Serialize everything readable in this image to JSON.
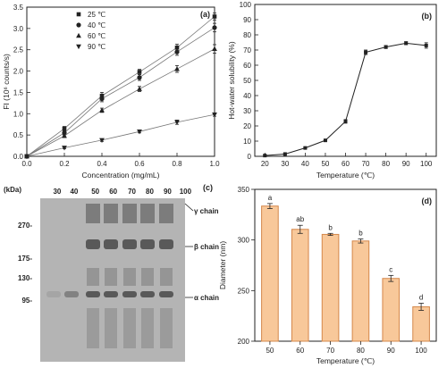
{
  "chart_data": [
    {
      "panel": "(a)",
      "type": "line",
      "xlabel": "Concentration (mg/mL)",
      "ylabel": "FI (10⁶ counts/s)",
      "xlim": [
        0.0,
        1.0
      ],
      "ylim": [
        0.0,
        3.5
      ],
      "xticks": [
        "0.0",
        "0.2",
        "0.4",
        "0.6",
        "0.8",
        "1.0"
      ],
      "yticks": [
        "0.0",
        "0.5",
        "1.0",
        "1.5",
        "2.0",
        "2.5",
        "3.0",
        "3.5"
      ],
      "legend_position": "top-left",
      "x": [
        0.0,
        0.2,
        0.4,
        0.6,
        0.8,
        1.0
      ],
      "series": [
        {
          "name": "25 ℃",
          "marker": "square",
          "values": [
            0.0,
            0.65,
            1.42,
            1.98,
            2.55,
            3.28
          ],
          "errors": [
            0,
            0.05,
            0.08,
            0.06,
            0.08,
            0.08
          ]
        },
        {
          "name": "40 ℃",
          "marker": "circle",
          "values": [
            0.0,
            0.55,
            1.35,
            1.85,
            2.45,
            3.02
          ],
          "errors": [
            0,
            0.05,
            0.07,
            0.07,
            0.08,
            0.1
          ]
        },
        {
          "name": "60 ℃",
          "marker": "triangle-up",
          "values": [
            0.0,
            0.48,
            1.08,
            1.58,
            2.05,
            2.52
          ],
          "errors": [
            0,
            0.04,
            0.05,
            0.06,
            0.08,
            0.1
          ]
        },
        {
          "name": "90 ℃",
          "marker": "triangle-down",
          "values": [
            0.0,
            0.2,
            0.38,
            0.58,
            0.8,
            0.98
          ],
          "errors": [
            0,
            0.02,
            0.03,
            0.03,
            0.05,
            0.04
          ]
        }
      ]
    },
    {
      "panel": "(b)",
      "type": "line",
      "xlabel": "Temperature (℃)",
      "ylabel": "Hot-water solubility (%)",
      "xlim": [
        15,
        105
      ],
      "ylim": [
        0,
        100
      ],
      "xticks": [
        "20",
        "30",
        "40",
        "50",
        "60",
        "70",
        "80",
        "90",
        "100"
      ],
      "yticks": [
        "0",
        "10",
        "20",
        "30",
        "40",
        "50",
        "60",
        "70",
        "80",
        "90",
        "100"
      ],
      "x": [
        20,
        30,
        40,
        50,
        60,
        70,
        80,
        90,
        100
      ],
      "values": [
        0.5,
        1.5,
        5.5,
        10.5,
        23.0,
        68.5,
        72.0,
        74.5,
        73.0
      ],
      "errors": [
        0.3,
        0.3,
        0.5,
        0.5,
        1.2,
        1.5,
        1.0,
        1.0,
        1.8
      ]
    },
    {
      "panel": "(c)",
      "type": "gel",
      "axis_title": "(kDa)",
      "lane_labels": [
        "30",
        "40",
        "50",
        "60",
        "70",
        "80",
        "90",
        "100"
      ],
      "markers": [
        "270-",
        "175-",
        "130-",
        "95-"
      ],
      "band_labels": [
        "γ chain",
        "β chain",
        "α chain"
      ]
    },
    {
      "panel": "(d)",
      "type": "bar",
      "xlabel": "Temperature (℃)",
      "ylabel": "Diameter (nm)",
      "ylim": [
        200,
        350
      ],
      "yticks": [
        "200",
        "250",
        "300",
        "350"
      ],
      "categories": [
        "50",
        "60",
        "70",
        "80",
        "90",
        "100"
      ],
      "values": [
        333.5,
        310.5,
        305.5,
        299.0,
        262.0,
        234.0
      ],
      "errors": [
        2.5,
        4.0,
        1.0,
        2.0,
        3.0,
        3.5
      ],
      "letters": [
        "a",
        "ab",
        "b",
        "b",
        "c",
        "d"
      ]
    }
  ],
  "colors": {
    "axis": "#222222",
    "bar_fill": "#f8c89a",
    "bar_stroke": "#d4874a",
    "gel_bg": "#b4b4b4",
    "band_dark": "#4f4f4f"
  }
}
